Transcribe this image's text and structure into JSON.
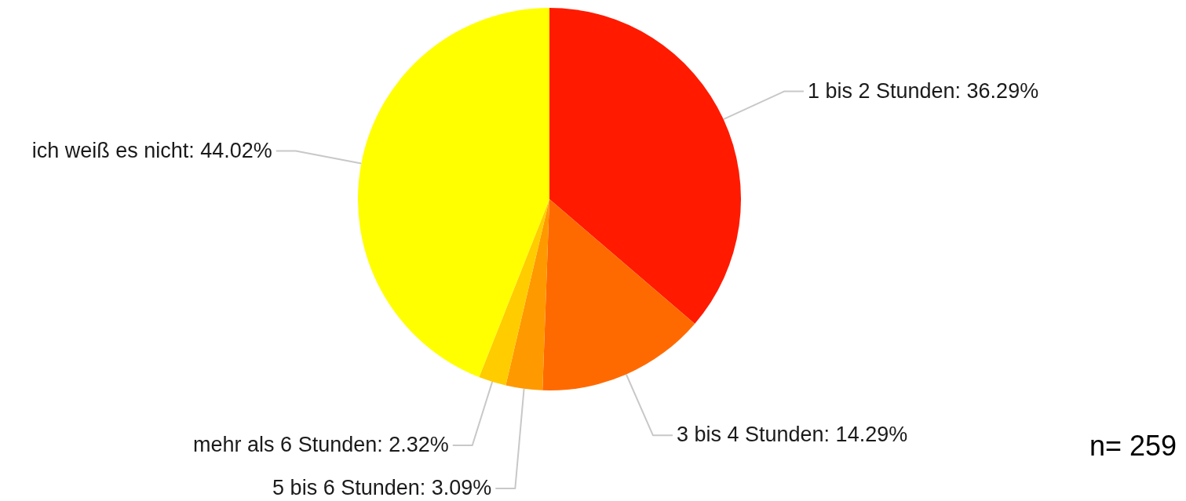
{
  "chart_data": {
    "type": "pie",
    "categories": [
      "1 bis 2 Stunden",
      "3 bis 4 Stunden",
      "5 bis 6 Stunden",
      "mehr als 6 Stunden",
      "ich weiß es nicht"
    ],
    "values": [
      36.29,
      14.29,
      3.09,
      2.32,
      44.02
    ],
    "colors": [
      "#ff1a00",
      "#ff6a00",
      "#ff9900",
      "#ffcc00",
      "#ffff00"
    ],
    "value_labels": [
      "36.29%",
      "14.29%",
      "3.09%",
      "2.32%",
      "44.02%"
    ],
    "annotations": [
      "n= 259"
    ]
  }
}
